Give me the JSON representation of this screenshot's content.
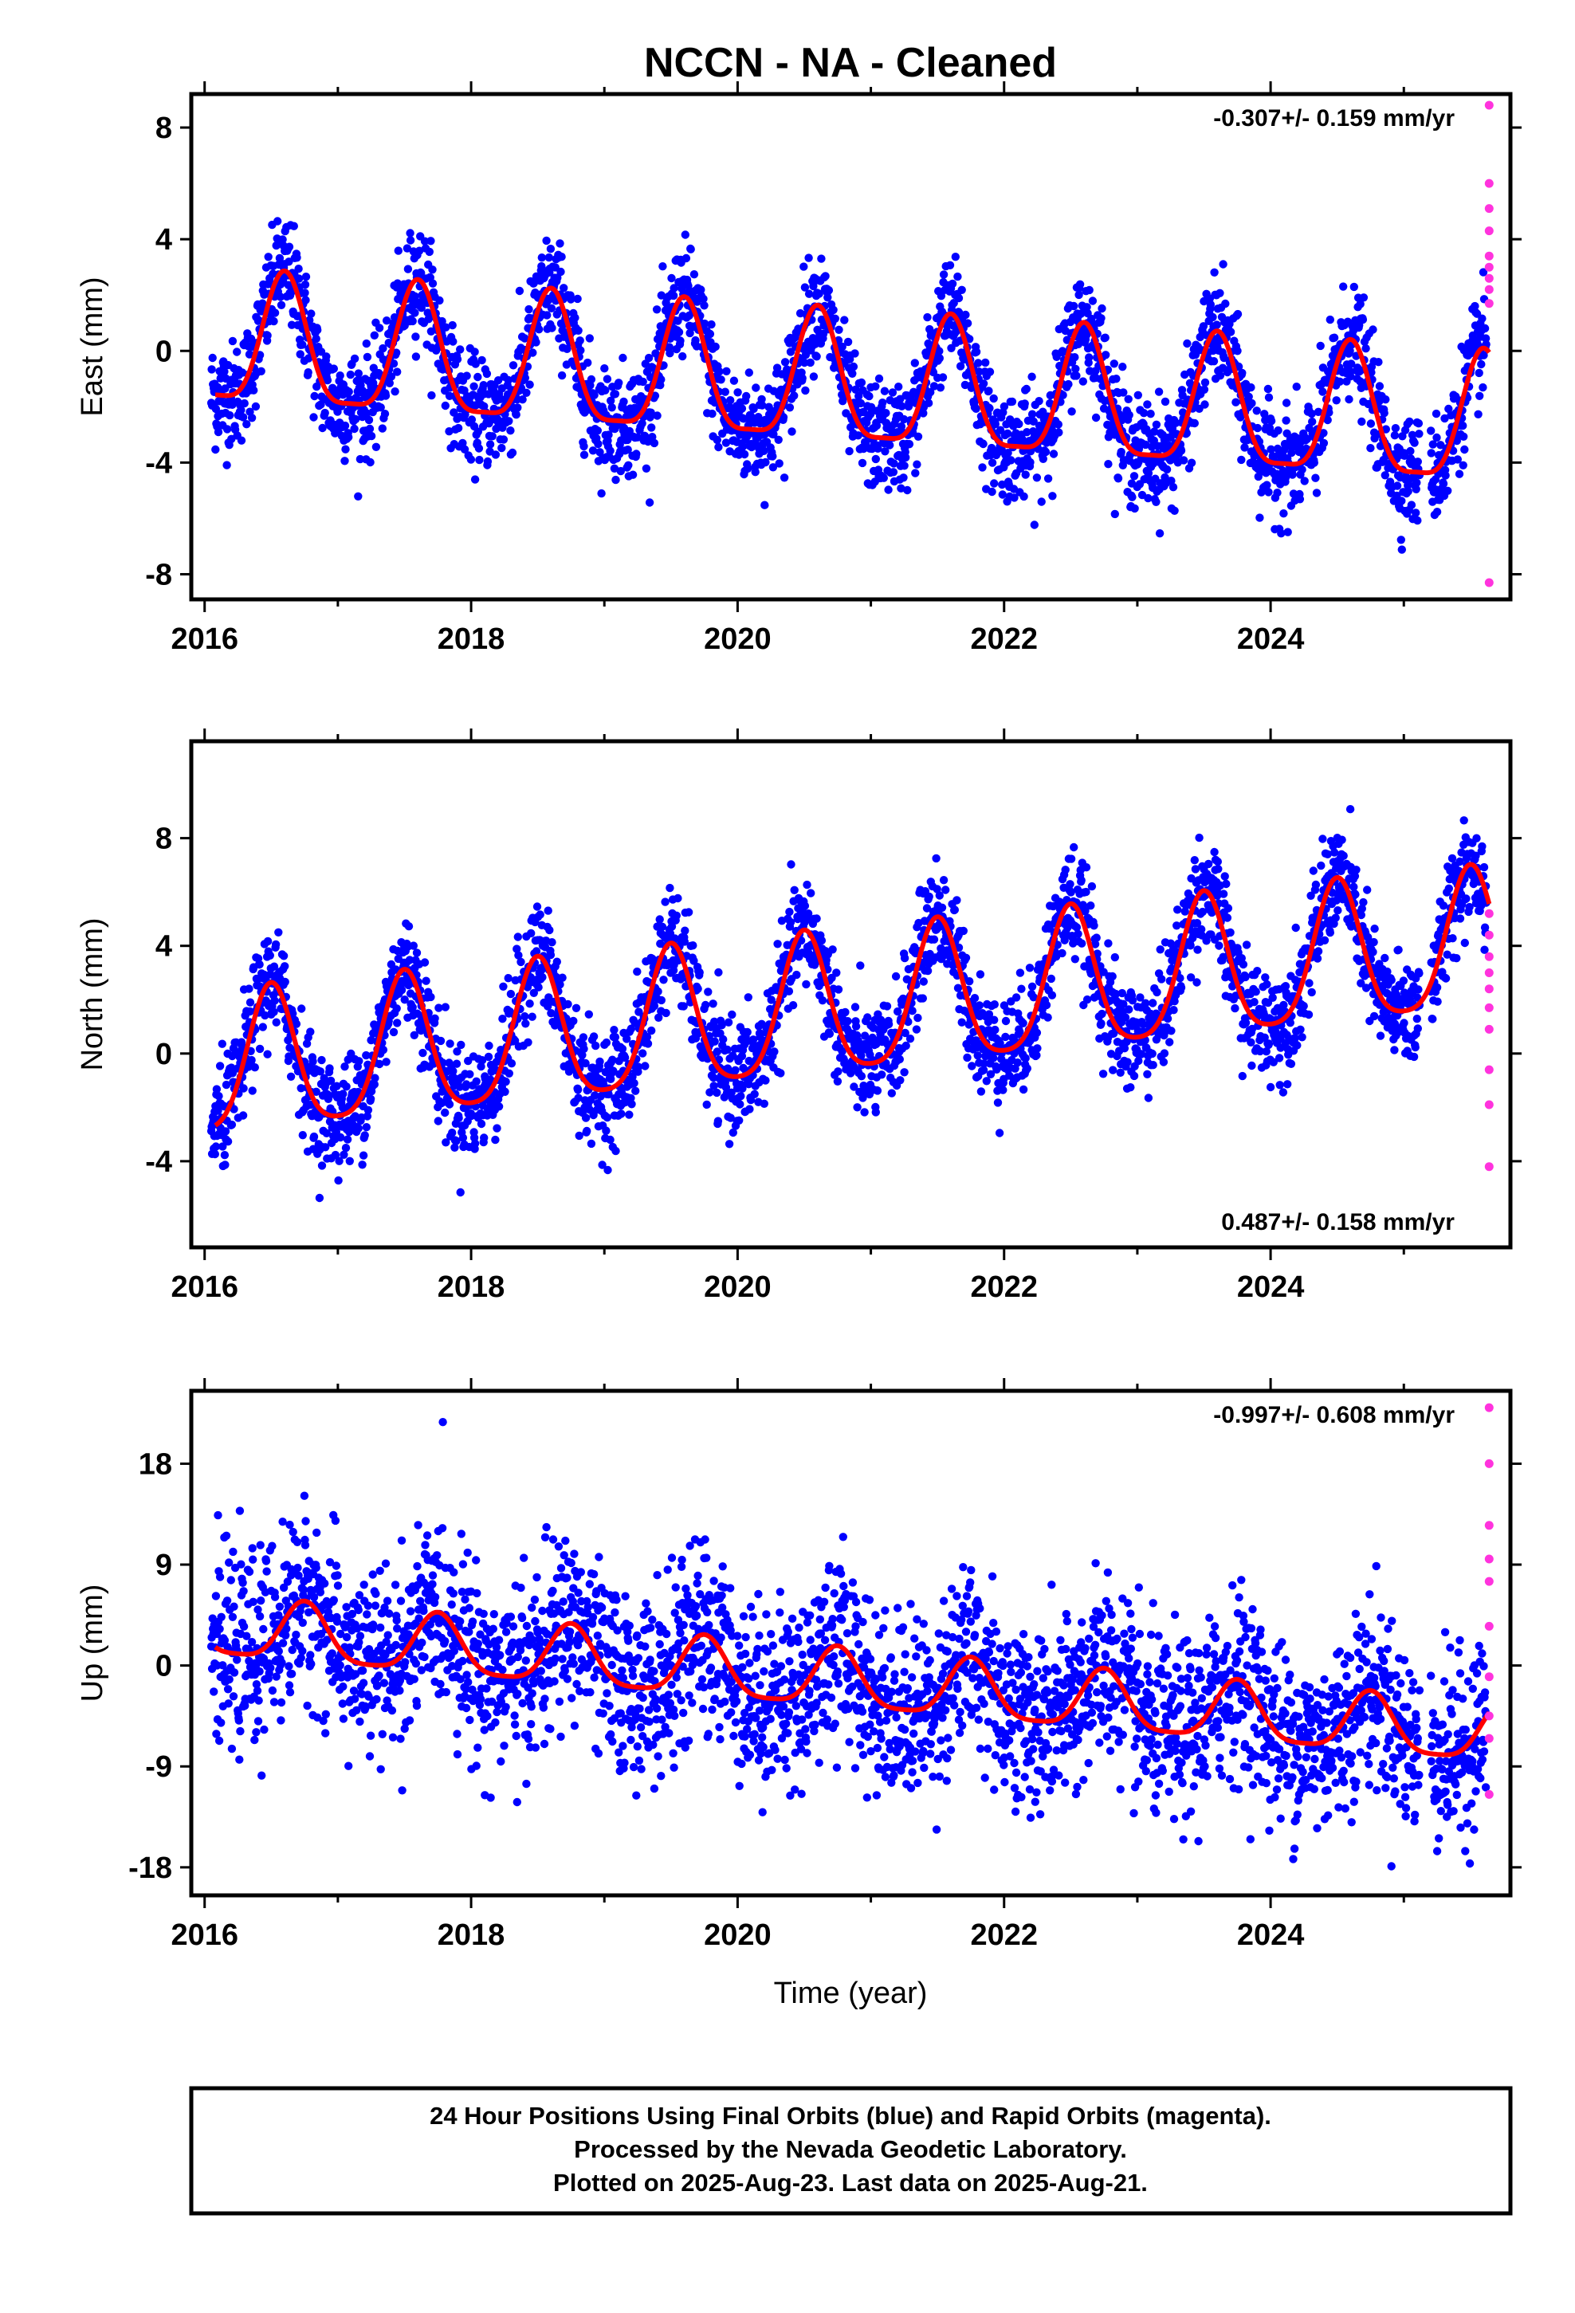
{
  "chart_title": "NCCN  - NA - Cleaned",
  "x_axis_label": "Time (year)",
  "footer_lines": [
    "24 Hour Positions Using Final Orbits (blue) and Rapid Orbits (magenta).",
    "Processed by the Nevada Geodetic Laboratory.",
    "Plotted on 2025-Aug-23. Last data on 2025-Aug-21."
  ],
  "colors": {
    "final_orbits": "#0000ff",
    "rapid_orbits": "#ff33dd",
    "model_fit": "#ff0000",
    "frame": "#000000"
  },
  "chart_data": [
    {
      "type": "scatter",
      "ylabel": "East (mm)",
      "rate_text": "-0.307+/- 0.159 mm/yr",
      "rate_position": "top-right",
      "xlim": [
        2015.9,
        2025.8
      ],
      "ylim": [
        -8.9,
        9.2
      ],
      "x_ticks": [
        2016,
        2018,
        2020,
        2022,
        2024
      ],
      "x_tick_labels": [
        "2016",
        "2018",
        "2020",
        "2022",
        "2024"
      ],
      "y_ticks": [
        -8,
        -4,
        0,
        4,
        8
      ],
      "y_tick_labels": [
        "-8",
        "-4",
        "0",
        "4",
        "8"
      ],
      "grid": false,
      "model": {
        "offset": 0.15,
        "rate": -0.307,
        "annual_amp": 2.3,
        "annual_phase_year": 2016.6,
        "semiannual_amp": 0.6,
        "t0": 2016.0
      },
      "model_curve": {
        "x": [
          2016.08,
          2016.6,
          2017.0,
          2017.6,
          2018.0,
          2018.6,
          2019.0,
          2019.6,
          2020.0,
          2020.6,
          2021.0,
          2021.6,
          2022.0,
          2022.6,
          2023.0,
          2023.6,
          2024.0,
          2024.6,
          2025.0,
          2025.6
        ],
        "y": [
          -0.1,
          4.1,
          -0.4,
          3.8,
          -0.7,
          3.4,
          -1.0,
          3.2,
          -1.3,
          2.9,
          -1.6,
          2.6,
          -1.9,
          2.3,
          -2.2,
          1.9,
          -2.5,
          1.6,
          -2.8,
          1.3
        ]
      },
      "scatter_noise_sd": 0.95,
      "rapid_points": {
        "x": [
          2025.64,
          2025.64,
          2025.64,
          2025.64,
          2025.64,
          2025.64,
          2025.64,
          2025.64,
          2025.64,
          2025.64
        ],
        "y": [
          8.8,
          6.0,
          5.1,
          4.3,
          3.4,
          3.0,
          2.6,
          2.2,
          1.7,
          -8.3
        ]
      }
    },
    {
      "type": "scatter",
      "ylabel": "North (mm)",
      "rate_text": "0.487+/- 0.158 mm/yr",
      "rate_position": "bottom-right",
      "xlim": [
        2015.9,
        2025.8
      ],
      "ylim": [
        -7.2,
        11.6
      ],
      "x_ticks": [
        2016,
        2018,
        2020,
        2022,
        2024
      ],
      "x_tick_labels": [
        "2016",
        "2018",
        "2020",
        "2022",
        "2024"
      ],
      "y_ticks": [
        -4,
        0,
        4,
        8
      ],
      "y_tick_labels": [
        "-4",
        "0",
        "4",
        "8"
      ],
      "grid": false,
      "model": {
        "offset": -0.7,
        "rate": 0.487,
        "annual_amp": 2.6,
        "annual_phase_year": 2016.5,
        "semiannual_amp": 0.5,
        "t0": 2016.0
      },
      "model_curve": {
        "x": [
          2016.08,
          2016.5,
          2016.9,
          2017.5,
          2017.9,
          2018.5,
          2018.9,
          2019.5,
          2019.9,
          2020.5,
          2020.9,
          2021.5,
          2021.9,
          2022.5,
          2022.9,
          2023.5,
          2023.9,
          2024.5,
          2024.9,
          2025.5
        ],
        "y": [
          -3.2,
          1.8,
          -3.9,
          2.3,
          -3.4,
          2.8,
          -2.9,
          3.3,
          -2.4,
          3.8,
          -1.9,
          4.3,
          -1.4,
          4.8,
          -0.9,
          5.3,
          -0.4,
          5.7,
          0.1,
          6.2
        ]
      },
      "scatter_noise_sd": 1.0,
      "rapid_points": {
        "x": [
          2025.64,
          2025.64,
          2025.64,
          2025.64,
          2025.64,
          2025.64,
          2025.64,
          2025.64,
          2025.64,
          2025.64
        ],
        "y": [
          5.2,
          4.4,
          3.6,
          3.0,
          2.4,
          1.7,
          0.9,
          -0.6,
          -1.9,
          -4.2
        ]
      }
    },
    {
      "type": "scatter",
      "ylabel": "Up (mm)",
      "rate_text": "-0.997+/- 0.608 mm/yr",
      "rate_position": "top-right",
      "xlim": [
        2015.9,
        2025.8
      ],
      "ylim": [
        -20.5,
        24.5
      ],
      "x_ticks": [
        2016,
        2018,
        2020,
        2022,
        2024
      ],
      "x_tick_labels": [
        "2016",
        "2018",
        "2020",
        "2022",
        "2024"
      ],
      "y_ticks": [
        -18,
        -9,
        0,
        9,
        18
      ],
      "y_tick_labels": [
        "-18",
        "-9",
        "0",
        "9",
        "18"
      ],
      "grid": false,
      "model": {
        "offset": 3.3,
        "rate": -0.997,
        "annual_amp": 2.6,
        "annual_phase_year": 2016.75,
        "semiannual_amp": 0.6,
        "t0": 2016.0
      },
      "model_curve": {
        "x": [
          2016.08,
          2016.75,
          2017.25,
          2017.75,
          2018.25,
          2018.75,
          2019.25,
          2019.75,
          2020.25,
          2020.75,
          2021.25,
          2021.75,
          2022.25,
          2022.75,
          2023.25,
          2023.75,
          2024.25,
          2024.75,
          2025.25,
          2025.64
        ],
        "y": [
          4.5,
          6.0,
          0.8,
          5.1,
          -0.2,
          4.1,
          -1.2,
          3.1,
          -2.2,
          2.1,
          -3.2,
          1.1,
          -4.2,
          0.1,
          -5.2,
          -0.9,
          -6.2,
          -1.9,
          -7.2,
          -2.8
        ]
      },
      "scatter_noise_sd": 4.0,
      "rapid_points": {
        "x": [
          2025.64,
          2025.64,
          2025.64,
          2025.64,
          2025.64,
          2025.64,
          2025.64,
          2025.64,
          2025.64,
          2025.64
        ],
        "y": [
          23.0,
          18.0,
          12.5,
          9.5,
          7.5,
          3.5,
          -1.0,
          -4.5,
          -6.5,
          -11.5
        ]
      }
    }
  ]
}
